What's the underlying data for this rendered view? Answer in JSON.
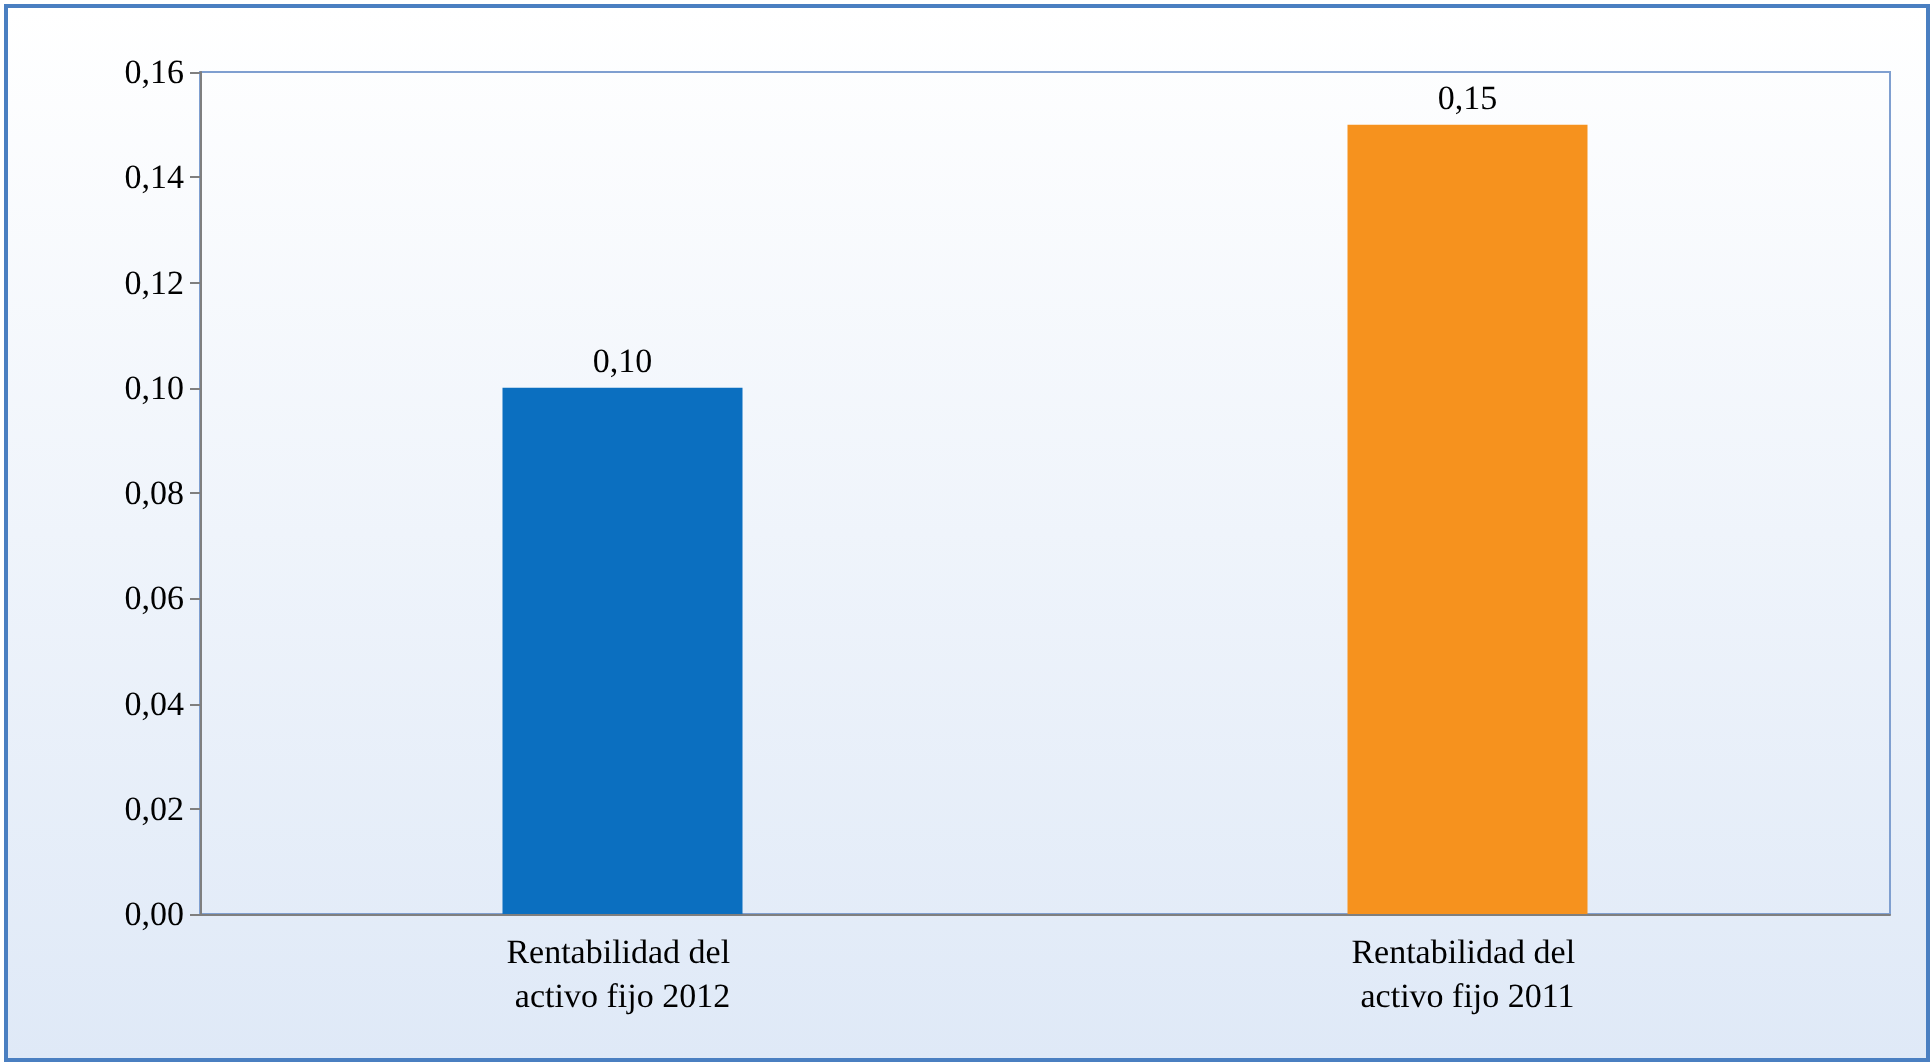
{
  "chart_data": {
    "type": "bar",
    "categories": [
      "Rentabilidad del activo fijo 2012",
      "Rentabilidad del activo fijo 2011"
    ],
    "values": [
      0.1,
      0.15
    ],
    "colors": [
      "#0b6fc0",
      "#f6921e"
    ],
    "value_labels": [
      "0,10",
      "0,15"
    ],
    "ylim": [
      0,
      0.16
    ],
    "yticks": [
      {
        "value": 0,
        "label": "0,00"
      },
      {
        "value": 0.02,
        "label": "0,02"
      },
      {
        "value": 0.04,
        "label": "0,04"
      },
      {
        "value": 0.06,
        "label": "0,06"
      },
      {
        "value": 0.08,
        "label": "0,08"
      },
      {
        "value": 0.1,
        "label": "0,10"
      },
      {
        "value": 0.12,
        "label": "0,12"
      },
      {
        "value": 0.14,
        "label": "0,14"
      },
      {
        "value": 0.16,
        "label": "0,16"
      }
    ],
    "grid": false
  }
}
